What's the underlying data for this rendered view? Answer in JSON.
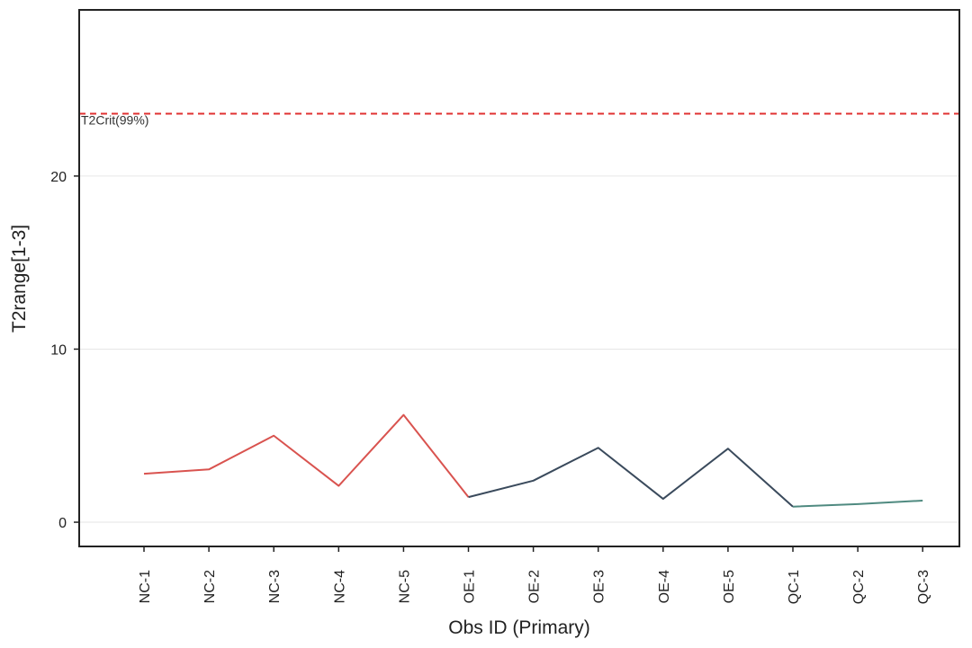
{
  "chart_data": {
    "type": "line",
    "title": "",
    "xlabel": "Obs ID (Primary)",
    "ylabel": "T2range[1-3]",
    "categories": [
      "NC-1",
      "NC-2",
      "NC-3",
      "NC-4",
      "NC-5",
      "OE-1",
      "OE-2",
      "OE-3",
      "OE-4",
      "OE-5",
      "QC-1",
      "QC-2",
      "QC-3"
    ],
    "ylim": [
      -1.4,
      29.6
    ],
    "yticks": [
      0,
      10,
      20
    ],
    "grid": true,
    "series": [
      {
        "color": "#d9534f",
        "points": [
          {
            "x": "NC-1",
            "y": 2.8
          },
          {
            "x": "NC-2",
            "y": 3.05
          },
          {
            "x": "NC-3",
            "y": 5.0
          },
          {
            "x": "NC-4",
            "y": 2.1
          },
          {
            "x": "NC-5",
            "y": 6.2
          },
          {
            "x": "OE-1",
            "y": 1.45
          }
        ]
      },
      {
        "color": "#3a4a5c",
        "points": [
          {
            "x": "OE-1",
            "y": 1.45
          },
          {
            "x": "OE-2",
            "y": 2.4
          },
          {
            "x": "OE-3",
            "y": 4.3
          },
          {
            "x": "OE-4",
            "y": 1.35
          },
          {
            "x": "OE-5",
            "y": 4.25
          },
          {
            "x": "QC-1",
            "y": 0.9
          }
        ]
      },
      {
        "color": "#4f8a80",
        "points": [
          {
            "x": "QC-1",
            "y": 0.9
          },
          {
            "x": "QC-2",
            "y": 1.05
          },
          {
            "x": "QC-3",
            "y": 1.25
          }
        ]
      }
    ],
    "reference_line": {
      "label": "T2Crit(99%)",
      "y": 23.6,
      "color": "#e03131",
      "style": "dashed"
    }
  }
}
